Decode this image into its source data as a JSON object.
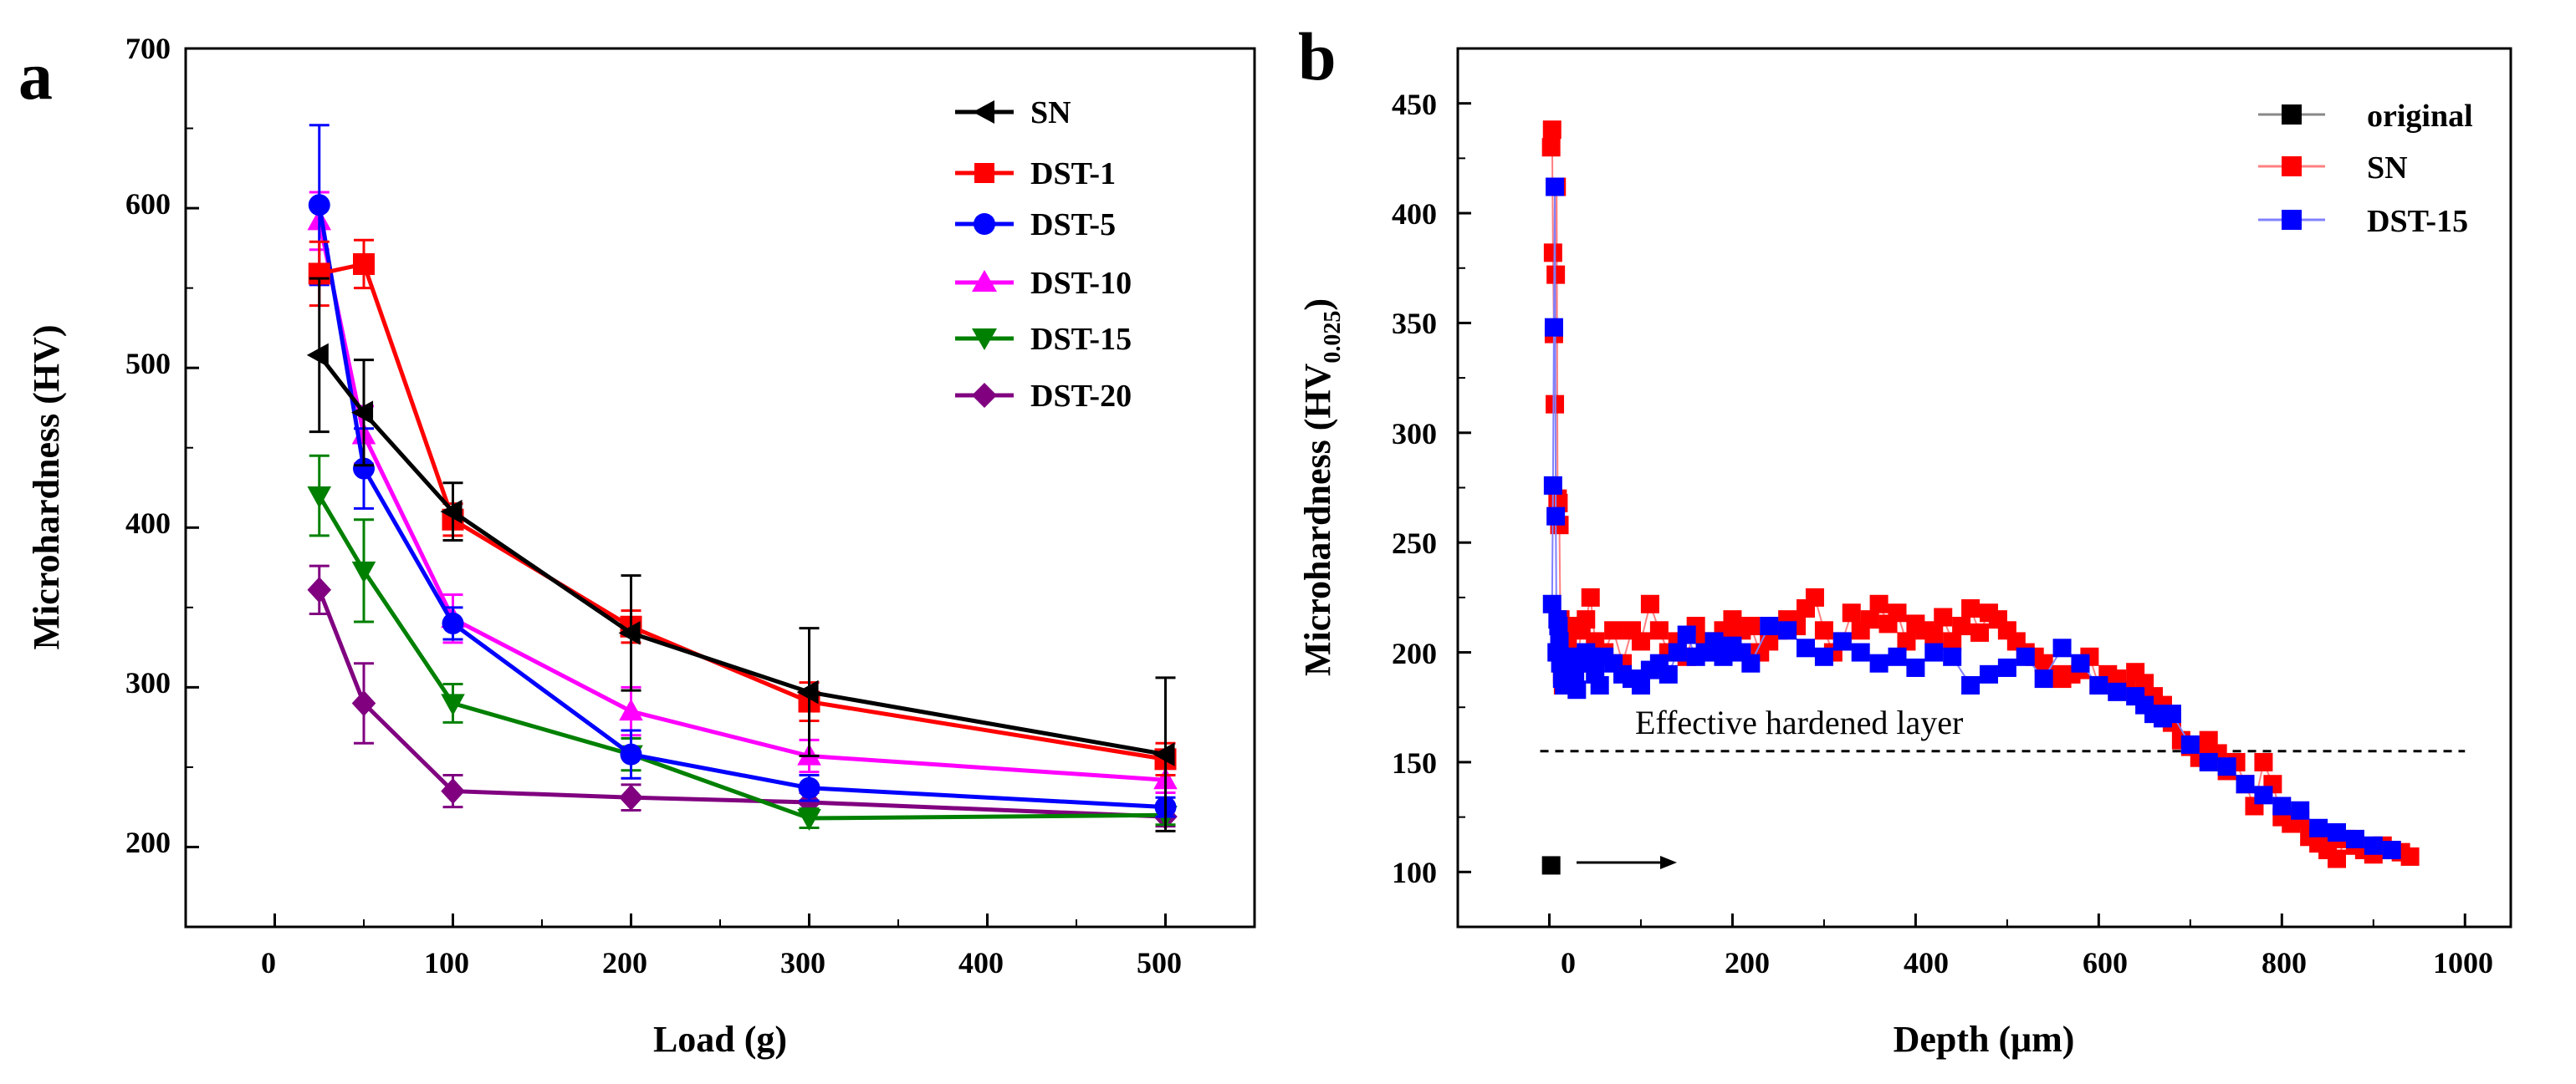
{
  "colors": {
    "SN": "#000000",
    "DST-1": "#ff0000",
    "DST-5": "#0000ff",
    "DST-10": "#ff00ff",
    "DST-15": "#008000",
    "DST-20": "#800080",
    "b_original": "#000000",
    "b_SN": "#ff0000",
    "b_DST-15": "#0000ff"
  },
  "chart_data": [
    {
      "panel": "a",
      "type": "line",
      "xlabel": "Load (g)",
      "ylabel": "Microhardness (HV)",
      "xlim": [
        -50,
        550
      ],
      "ylim": [
        150,
        700
      ],
      "xticks": [
        0,
        100,
        200,
        300,
        400,
        500
      ],
      "yticks": [
        200,
        300,
        400,
        500,
        600,
        700
      ],
      "legend_position": "top-right",
      "x": [
        25,
        50,
        100,
        200,
        300,
        500
      ],
      "series": [
        {
          "name": "SN",
          "marker": "triangle-left",
          "values": [
            508,
            472,
            410,
            334,
            297,
            258
          ],
          "errors": [
            48,
            33,
            18,
            36,
            40,
            48
          ]
        },
        {
          "name": "DST-1",
          "marker": "square",
          "values": [
            559,
            565,
            405,
            338,
            291,
            255
          ],
          "errors": [
            20,
            15,
            10,
            10,
            12,
            10
          ]
        },
        {
          "name": "DST-5",
          "marker": "circle",
          "values": [
            602,
            437,
            340,
            258,
            237,
            225
          ],
          "errors": [
            50,
            25,
            10,
            15,
            8,
            6
          ]
        },
        {
          "name": "DST-10",
          "marker": "triangle-up",
          "values": [
            592,
            458,
            343,
            285,
            257,
            242
          ],
          "errors": [
            18,
            18,
            15,
            15,
            10,
            8
          ]
        },
        {
          "name": "DST-15",
          "marker": "triangle-down",
          "values": [
            420,
            373,
            290,
            258,
            218,
            220
          ],
          "errors": [
            25,
            32,
            12,
            10,
            6,
            6
          ]
        },
        {
          "name": "DST-20",
          "marker": "diamond",
          "values": [
            361,
            290,
            235,
            231,
            228,
            219
          ],
          "errors": [
            15,
            25,
            10,
            8,
            6,
            6
          ]
        }
      ]
    },
    {
      "panel": "b",
      "type": "scatter",
      "xlabel": "Depth (μm)",
      "ylabel_main": "Microhardness (HV",
      "ylabel_sub": "0.025",
      "ylabel_end": ")",
      "xlim": [
        -100,
        1050
      ],
      "ylim": [
        75,
        475
      ],
      "xticks": [
        0,
        200,
        400,
        600,
        800,
        1000
      ],
      "yticks": [
        100,
        150,
        200,
        250,
        300,
        350,
        400,
        450
      ],
      "legend_position": "top-right",
      "reference_line": {
        "y": 155,
        "label": "Effective hardened layer",
        "x_range": [
          -10,
          1000
        ]
      },
      "series": [
        {
          "name": "original",
          "marker": "square",
          "x": [
            2
          ],
          "y": [
            103
          ]
        },
        {
          "name": "SN",
          "marker": "square",
          "x": [
            2,
            3,
            4,
            5,
            6,
            7,
            8,
            9,
            10,
            11,
            12,
            13,
            14,
            15,
            17,
            20,
            25,
            30,
            35,
            40,
            45,
            50,
            60,
            70,
            80,
            90,
            100,
            110,
            120,
            130,
            140,
            150,
            160,
            170,
            180,
            190,
            200,
            210,
            220,
            230,
            240,
            250,
            260,
            270,
            280,
            290,
            300,
            310,
            320,
            330,
            340,
            350,
            360,
            370,
            380,
            390,
            400,
            410,
            420,
            430,
            440,
            450,
            460,
            470,
            480,
            490,
            500,
            510,
            520,
            530,
            540,
            550,
            560,
            570,
            580,
            590,
            600,
            610,
            620,
            630,
            640,
            650,
            660,
            670,
            680,
            690,
            700,
            710,
            720,
            730,
            740,
            750,
            760,
            770,
            780,
            790,
            800,
            810,
            820,
            830,
            840,
            850,
            860,
            870,
            880,
            890,
            900,
            910,
            920,
            930,
            940
          ],
          "y": [
            430,
            438,
            382,
            345,
            313,
            372,
            412,
            270,
            268,
            258,
            215,
            200,
            190,
            185,
            198,
            205,
            212,
            195,
            210,
            215,
            225,
            205,
            200,
            210,
            195,
            210,
            205,
            222,
            210,
            200,
            205,
            198,
            212,
            205,
            205,
            210,
            215,
            210,
            212,
            200,
            205,
            210,
            215,
            212,
            220,
            225,
            210,
            200,
            205,
            218,
            210,
            215,
            222,
            213,
            218,
            205,
            213,
            210,
            208,
            216,
            205,
            212,
            220,
            209,
            218,
            215,
            210,
            205,
            200,
            198,
            195,
            190,
            188,
            190,
            192,
            198,
            185,
            190,
            188,
            183,
            191,
            186,
            180,
            176,
            168,
            160,
            157,
            152,
            160,
            154,
            146,
            150,
            140,
            130,
            150,
            140,
            125,
            122,
            124,
            116,
            113,
            110,
            106,
            115,
            112,
            110,
            108,
            112,
            110,
            109,
            107
          ]
        },
        {
          "name": "DST-15",
          "marker": "square",
          "x": [
            3,
            4,
            5,
            6,
            7,
            8,
            9,
            10,
            11,
            12,
            14,
            16,
            18,
            20,
            22,
            25,
            28,
            30,
            35,
            40,
            45,
            50,
            55,
            60,
            70,
            80,
            90,
            100,
            110,
            120,
            130,
            140,
            150,
            160,
            170,
            180,
            190,
            200,
            210,
            220,
            240,
            260,
            280,
            300,
            320,
            340,
            360,
            380,
            400,
            420,
            440,
            460,
            480,
            500,
            520,
            540,
            560,
            580,
            600,
            620,
            640,
            650,
            660,
            670,
            680,
            700,
            720,
            740,
            760,
            780,
            800,
            820,
            840,
            860,
            880,
            900,
            920
          ],
          "y": [
            222,
            276,
            348,
            412,
            262,
            200,
            215,
            212,
            205,
            195,
            188,
            185,
            190,
            193,
            198,
            185,
            190,
            183,
            195,
            200,
            198,
            190,
            185,
            198,
            195,
            190,
            188,
            185,
            192,
            195,
            190,
            200,
            208,
            198,
            200,
            205,
            198,
            203,
            200,
            195,
            212,
            210,
            202,
            198,
            205,
            200,
            195,
            198,
            193,
            200,
            198,
            185,
            190,
            193,
            198,
            188,
            202,
            195,
            185,
            182,
            180,
            176,
            172,
            170,
            172,
            158,
            150,
            148,
            140,
            135,
            130,
            128,
            120,
            118,
            115,
            112,
            110
          ]
        }
      ]
    }
  ]
}
